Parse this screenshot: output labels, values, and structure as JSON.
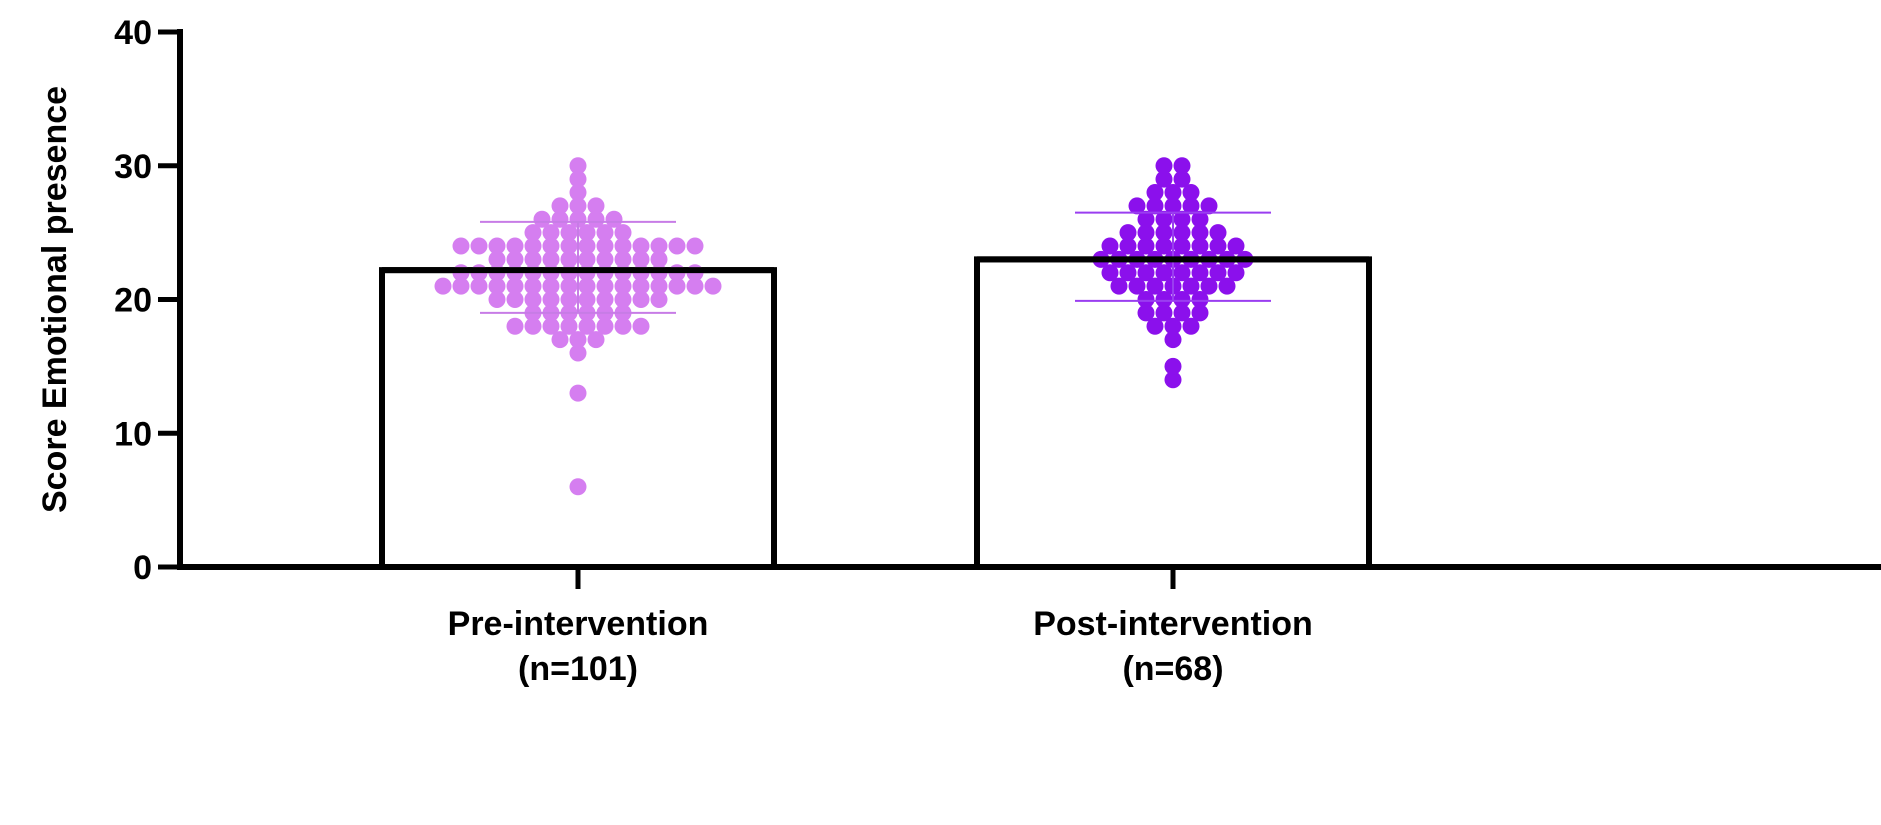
{
  "chart_data": {
    "type": "bar",
    "title": "",
    "xlabel": "",
    "ylabel": "Score Emotional presence",
    "ylim": [
      0,
      40
    ],
    "yticks": [
      0,
      10,
      20,
      30,
      40
    ],
    "grid": false,
    "legend": "none",
    "categories": [
      {
        "label_line1": "Pre-intervention",
        "label_line2": "(n=101)"
      },
      {
        "label_line1": "Post-intervention",
        "label_line2": "(n=68)"
      }
    ],
    "series": [
      {
        "bar_value": 22.2,
        "sd_upper": 25.8,
        "sd_lower": 19.0,
        "point_color": "#d57ef0",
        "error_color": "#c77ce6",
        "points": [
          6,
          13,
          16,
          17,
          17,
          17,
          18,
          18,
          18,
          18,
          18,
          18,
          18,
          18,
          19,
          19,
          19,
          19,
          19,
          19,
          20,
          20,
          20,
          20,
          20,
          20,
          20,
          20,
          20,
          20,
          21,
          21,
          21,
          21,
          21,
          21,
          21,
          21,
          21,
          21,
          21,
          21,
          21,
          21,
          21,
          21,
          22,
          22,
          22,
          22,
          22,
          22,
          22,
          22,
          22,
          22,
          22,
          22,
          22,
          22,
          23,
          23,
          23,
          23,
          23,
          23,
          23,
          23,
          23,
          23,
          24,
          24,
          24,
          24,
          24,
          24,
          24,
          24,
          24,
          24,
          24,
          24,
          24,
          24,
          25,
          25,
          25,
          25,
          25,
          25,
          26,
          26,
          26,
          26,
          26,
          27,
          27,
          27,
          28,
          29,
          30
        ]
      },
      {
        "bar_value": 23.0,
        "sd_upper": 26.5,
        "sd_lower": 19.9,
        "point_color": "#8b10ec",
        "error_color": "#9a3ef0",
        "points": [
          14,
          15,
          17,
          18,
          18,
          18,
          19,
          19,
          19,
          19,
          20,
          20,
          20,
          20,
          21,
          21,
          21,
          21,
          21,
          21,
          21,
          22,
          22,
          22,
          22,
          22,
          22,
          22,
          22,
          23,
          23,
          23,
          23,
          23,
          23,
          23,
          23,
          23,
          24,
          24,
          24,
          24,
          24,
          24,
          24,
          24,
          25,
          25,
          25,
          25,
          25,
          25,
          26,
          26,
          26,
          26,
          27,
          27,
          27,
          27,
          27,
          28,
          28,
          28,
          29,
          29,
          30,
          30
        ]
      }
    ]
  }
}
